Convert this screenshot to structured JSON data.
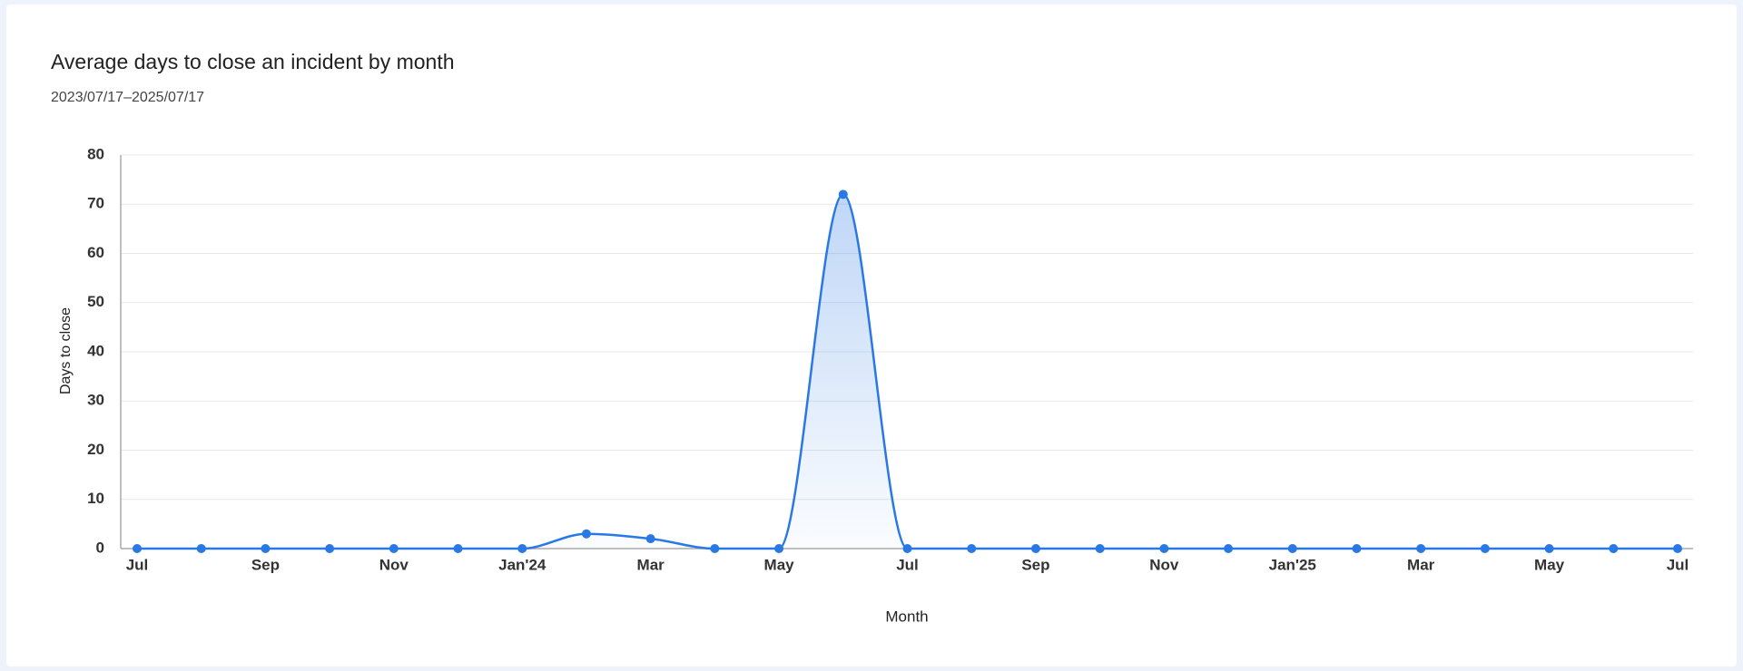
{
  "chart_data": {
    "type": "line",
    "title": "Average days to close an incident by month",
    "subtitle": "2023/07/17–2025/07/17",
    "x_label": "Month",
    "y_label": "Days to close",
    "categories": [
      "Jul",
      null,
      "Sep",
      null,
      "Nov",
      null,
      "Jan'24",
      null,
      "Mar",
      null,
      "May",
      null,
      "Jul",
      null,
      "Sep",
      null,
      "Nov",
      null,
      "Jan'25",
      null,
      "Mar",
      null,
      "May",
      null,
      "Jul"
    ],
    "series": [
      {
        "name": "Average days to close",
        "color": "#2a78e4",
        "values": [
          0,
          0,
          0,
          0,
          0,
          0,
          0,
          3,
          2,
          0,
          0,
          72,
          0,
          0,
          0,
          0,
          0,
          0,
          0,
          0,
          0,
          0,
          0,
          0,
          0
        ]
      }
    ],
    "ylim": [
      0,
      80
    ],
    "yticks": [
      0,
      10,
      20,
      30,
      40,
      50,
      60,
      70,
      80
    ],
    "grid": true
  }
}
